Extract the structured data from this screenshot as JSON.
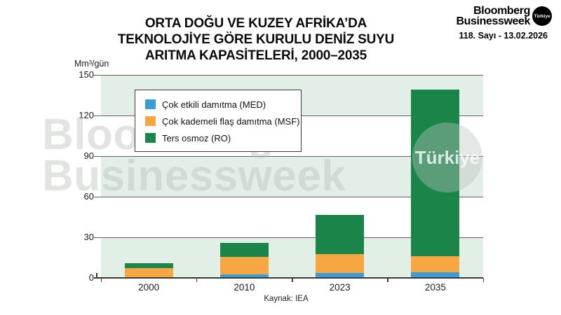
{
  "header": {
    "brand_line1": "Bloomberg",
    "brand_line2": "Businessweek",
    "brand_badge": "Türkiye",
    "issue": "118. Sayı - 13.02.2026"
  },
  "title": {
    "line1": "ORTA DOĞU VE KUZEY AFRİKA’DA",
    "line2": "TEKNOLOJİYE GÖRE KURULU DENİZ SUYU",
    "line3": "ARITMA KAPASİTELERİ, 2000–2035"
  },
  "watermark": {
    "line1": "Bloomberg",
    "line2": "Businessweek",
    "badge": "Türkiye"
  },
  "source": "Kaynak: IEA",
  "chart_data": {
    "type": "bar",
    "stacked": true,
    "title": "ORTA DOĞU VE KUZEY AFRİKA’DA TEKNOLOJİYE GÖRE KURULU DENİZ SUYU ARITMA KAPASİTELERİ, 2000–2035",
    "ylabel": "Mm³/gün",
    "categories": [
      "2000",
      "2010",
      "2023",
      "2035"
    ],
    "series": [
      {
        "name": "Çok etkili damıtma (MED)",
        "color": "#3B9CD7",
        "values": [
          0,
          2.5,
          3.5,
          4
        ]
      },
      {
        "name": "Çok kademeli flaş damıtma (MSF)",
        "color": "#F6A742",
        "values": [
          7,
          13,
          14,
          12
        ]
      },
      {
        "name": "Ters osmoz (RO)",
        "color": "#1A8449",
        "values": [
          4,
          10.5,
          29,
          123
        ]
      }
    ],
    "totals": [
      11,
      26,
      46.5,
      139
    ],
    "ylim": [
      0,
      150
    ],
    "ytick_step": 30,
    "grid": true,
    "legend_position": "top-left",
    "source_label": "Kaynak: IEA",
    "colors": {
      "band": "#E2EFE7",
      "band_alt": "#FFFFFF",
      "gridline": "#5f5f5f",
      "axis": "#3a3a3a"
    }
  }
}
